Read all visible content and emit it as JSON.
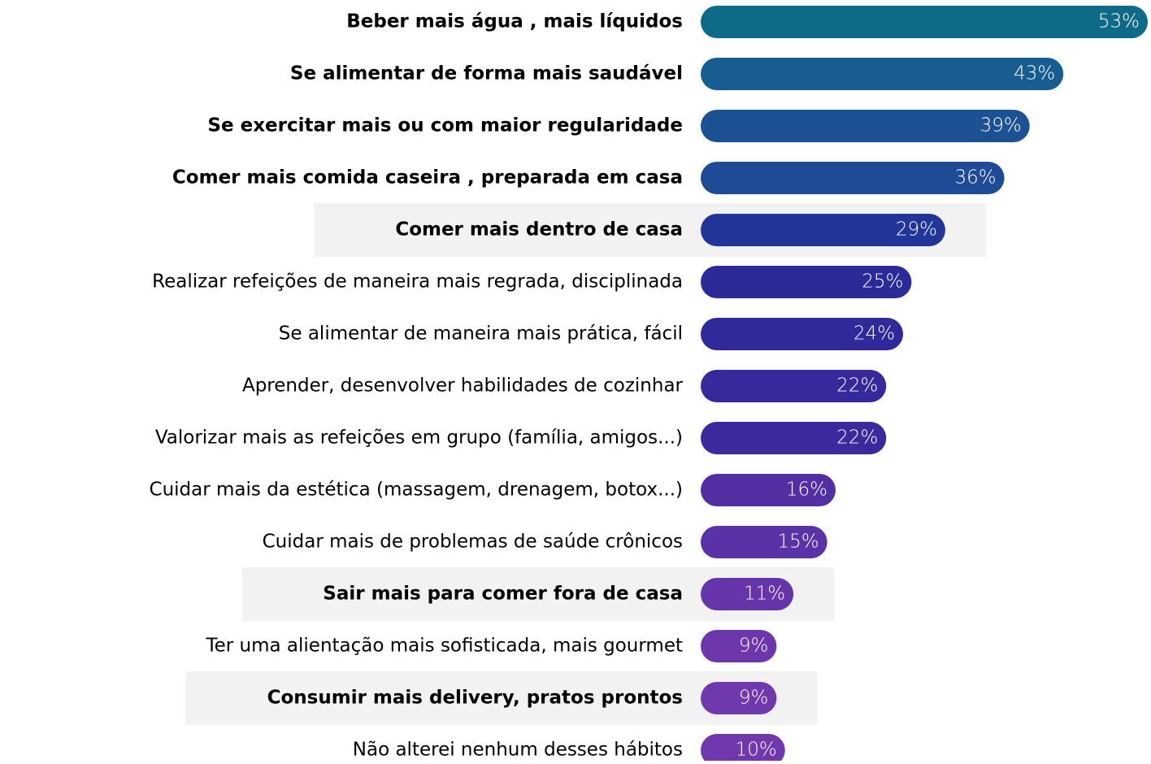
{
  "chart_data": {
    "type": "hbar",
    "categories": [
      "Beber mais água , mais líquidos",
      "Se alimentar de forma mais saudável",
      "Se exercitar  mais ou com maior regularidade",
      "Comer mais comida caseira , preparada em casa",
      "Comer mais dentro  de casa",
      "Realizar refeições de maneira mais regrada, disciplinada",
      "Se alimentar de maneira mais prática, fácil",
      "Aprender, desenvolver habilidades de cozinhar",
      "Valorizar mais as refeições em grupo (família, amigos...)",
      "Cuidar mais da estética  (massagem, drenagem, botox...)",
      "Cuidar mais de problemas de saúde crônicos",
      "Sair mais para comer fora de casa",
      "Ter uma alientação mais sofisticada, mais gourmet",
      "Consumir mais delivery, pratos prontos",
      "Não alterei nenhum desses hábitos"
    ],
    "values": [
      53,
      43,
      39,
      36,
      29,
      25,
      24,
      22,
      22,
      16,
      15,
      11,
      9,
      9,
      10
    ],
    "value_labels": [
      "53%",
      "43%",
      "39%",
      "36%",
      "29%",
      "25%",
      "24%",
      "22%",
      "22%",
      "16%",
      "15%",
      "11%",
      "9%",
      "9%",
      "10%"
    ],
    "colors": [
      "#0e6b87",
      "#175d92",
      "#1c5294",
      "#1f4a96",
      "#223599",
      "#2a2b99",
      "#2f299a",
      "#36299b",
      "#3a2a9d",
      "#5230a4",
      "#5832a6",
      "#6535a9",
      "#6d37ab",
      "#6f38ac",
      "#7038ac"
    ],
    "bold": [
      true,
      true,
      true,
      true,
      true,
      false,
      false,
      false,
      false,
      false,
      false,
      true,
      false,
      true,
      false
    ],
    "highlighted": [
      false,
      false,
      false,
      false,
      true,
      false,
      false,
      false,
      false,
      false,
      false,
      true,
      false,
      true,
      false
    ]
  }
}
